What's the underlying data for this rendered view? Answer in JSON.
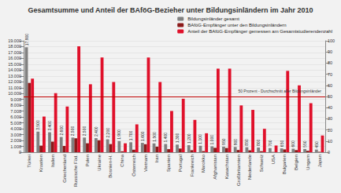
{
  "chart_data": {
    "type": "bar",
    "title": "Gesamtsumme und Anteil der BAföG-Bezieher unter Bildungsinländern im Jahr 2010",
    "categories": [
      "Türkei",
      "Kroatien",
      "Italien",
      "Griechenland",
      "Russische Föd.",
      "Polen",
      "Ukraine",
      "Bosnien-H.",
      "China",
      "Österreich",
      "Vietnam",
      "Iran",
      "Spanien",
      "Portugal",
      "Frankreich",
      "Marokko",
      "Afghanistan",
      "Kasachstan",
      "Großbritannien",
      "Niederlande",
      "Schweiz",
      "USA",
      "Bulgarien",
      "Belgien",
      "Ungarn",
      "Japan"
    ],
    "series": [
      {
        "name": "Bildungsinländer gesamt",
        "color": "#808080",
        "values": [
          17900,
          3500,
          3400,
          2600,
          2500,
          2500,
          2400,
          2200,
          1900,
          1700,
          1600,
          1500,
          1400,
          1300,
          1200,
          1100,
          1000,
          950,
          900,
          850,
          800,
          700,
          650,
          600,
          550,
          450
        ],
        "value_labels": [
          "17.900",
          "3.500",
          "3.400",
          "2.600",
          "2.500",
          "2.500",
          "2.400",
          "2.200",
          "1.900",
          "1.700",
          "1.600",
          "1.500",
          "1.400",
          "1.300",
          "1.200",
          "1.100",
          "1.000",
          "950",
          "900",
          "850",
          "800",
          "700",
          "650",
          "600",
          "550",
          "450"
        ],
        "data_labels": true
      },
      {
        "name": "BAföG-Empfänger unter den Bildungsinländern",
        "color": "#8b1a1a",
        "values": [
          11814,
          1120,
          1802,
          1066,
          2375,
          1525,
          2040,
          1386,
          152,
          425,
          1360,
          945,
          518,
          624,
          348,
          187,
          750,
          712,
          378,
          323,
          168,
          42,
          474,
          360,
          242,
          68
        ]
      },
      {
        "name": "Anteil der BAföG-Empfänger gemessen am Gesamtstudierendenzahl",
        "color": "#e0102a",
        "axis": "y2",
        "values": [
          66,
          32,
          53,
          41,
          95,
          61,
          85,
          63,
          8,
          25,
          85,
          63,
          37,
          48,
          29,
          17,
          75,
          75,
          42,
          38,
          21,
          6,
          73,
          60,
          44,
          15
        ]
      }
    ],
    "ylim": [
      0,
      19000
    ],
    "yticks": [
      0,
      {
        "value": 1000,
        "label": "1.000"
      },
      {
        "value": 2000,
        "label": "2.000"
      },
      {
        "value": 3000,
        "label": "3.000"
      },
      {
        "value": 4000,
        "label": "4.000"
      },
      {
        "value": 5000,
        "label": "5.000"
      },
      {
        "value": 6000,
        "label": "6.000"
      },
      {
        "value": 7000,
        "label": "7.000"
      },
      {
        "value": 8000,
        "label": "8.000"
      },
      {
        "value": 9000,
        "label": "9.000"
      },
      {
        "value": 10000,
        "label": "10.000"
      },
      {
        "value": 11000,
        "label": "11.000"
      },
      {
        "value": 12000,
        "label": "12.000"
      },
      {
        "value": 13000,
        "label": "13.000"
      },
      {
        "value": 14000,
        "label": "14.000"
      },
      {
        "value": 15000,
        "label": "15.000"
      },
      {
        "value": 16000,
        "label": "16.000"
      },
      {
        "value": 17000,
        "label": "17.000"
      },
      {
        "value": 18000,
        "label": "18.000"
      },
      {
        "value": 19000,
        "label": "19.000"
      }
    ],
    "y2lim": [
      0,
      100
    ],
    "y2ticks": [
      0,
      10,
      20,
      30,
      40,
      50,
      60,
      70,
      80,
      90,
      100
    ],
    "annotations": [
      {
        "text": "50 Prozent - Durchschnitt aller Bildungsinländer",
        "y2": 50
      }
    ],
    "legend": "top-right",
    "grid": true
  }
}
